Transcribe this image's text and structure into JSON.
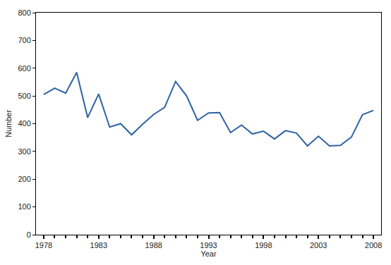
{
  "chart_data": {
    "type": "line",
    "x": [
      1978,
      1979,
      1980,
      1981,
      1982,
      1983,
      1984,
      1985,
      1986,
      1987,
      1988,
      1989,
      1990,
      1991,
      1992,
      1993,
      1994,
      1995,
      1996,
      1997,
      1998,
      1999,
      2000,
      2001,
      2002,
      2003,
      2004,
      2005,
      2006,
      2007,
      2008
    ],
    "values": [
      505,
      528,
      510,
      585,
      422,
      507,
      388,
      400,
      360,
      398,
      433,
      459,
      552,
      500,
      412,
      439,
      440,
      368,
      395,
      363,
      373,
      345,
      375,
      366,
      320,
      355,
      320,
      322,
      352,
      432,
      448
    ],
    "color": "#2f63a3",
    "x_label": "Year",
    "y_label": "Number",
    "xlim": [
      1977.3,
      2008.7
    ],
    "xticks": [
      1978,
      1983,
      1988,
      1993,
      1998,
      2003,
      2008
    ],
    "ylim": [
      0,
      800
    ],
    "yticks": [
      0,
      100,
      200,
      300,
      400,
      500,
      600,
      700,
      800
    ],
    "grid": false
  }
}
